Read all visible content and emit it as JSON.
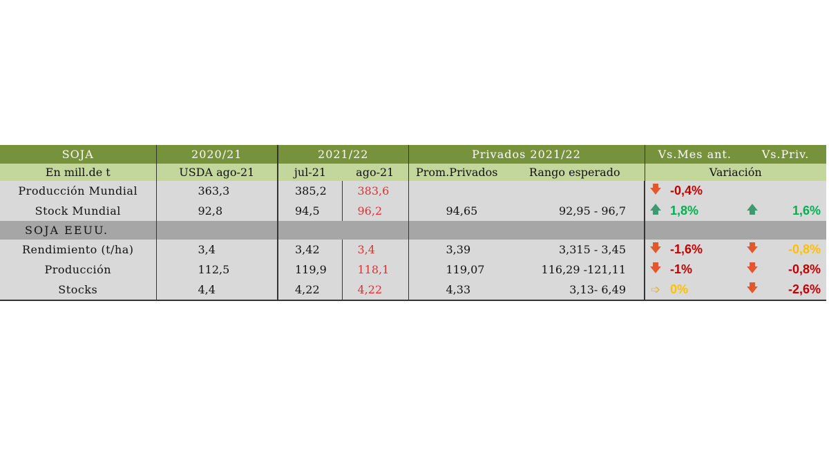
{
  "header1": {
    "soja": "SOJA",
    "year_2020": "2020/21",
    "year_2021": "2021/22",
    "privados": "Privados 2021/22",
    "vs_mes": "Vs.Mes ant.",
    "vs_priv": "Vs.Priv."
  },
  "header2": {
    "unit": "En mill.de t",
    "usda": "USDA ago-21",
    "jul": "jul-21",
    "ago": "ago-21",
    "prom": "Prom.Privados",
    "rango": "Rango esperado",
    "variacion": "Variación"
  },
  "section_label": "SOJA EEUU.",
  "rows_world": [
    {
      "label": "Producción Mundial",
      "usda": "363,3",
      "jul": "385,2",
      "ago": "383,6",
      "prom": "",
      "rango": "",
      "var1_icon": "arrow-down",
      "var1": "-0,4%",
      "var1_color": "#c00000",
      "var2_icon": "",
      "var2": "",
      "var2_color": ""
    },
    {
      "label": "Stock Mundial",
      "usda": "92,8",
      "jul": "94,5",
      "ago": "96,2",
      "prom": "94,65",
      "rango": "92,95 - 96,7",
      "var1_icon": "arrow-up",
      "var1": "1,8%",
      "var1_color": "#00b050",
      "var2_icon": "arrow-up",
      "var2": "1,6%",
      "var2_color": "#00b050"
    }
  ],
  "rows_us": [
    {
      "label": "Rendimiento (t/ha)",
      "usda": "3,4",
      "jul": "3,42",
      "ago": "3,4",
      "prom": "3,39",
      "rango": "3,315 - 3,45",
      "var1_icon": "arrow-down",
      "var1": "-1,6%",
      "var1_color": "#c00000",
      "var2_icon": "arrow-down",
      "var2": "-0,8%",
      "var2_color": "#ffc000"
    },
    {
      "label": "Producción",
      "usda": "112,5",
      "jul": "119,9",
      "ago": "118,1",
      "prom": "119,07",
      "rango": "116,29 -121,11",
      "var1_icon": "arrow-down",
      "var1": "-1%",
      "var1_color": "#c00000",
      "var2_icon": "arrow-down",
      "var2": "-0,8%",
      "var2_color": "#c00000"
    },
    {
      "label": "Stocks",
      "usda": "4,4",
      "jul": "4,22",
      "ago": "4,22",
      "prom": "4,33",
      "rango": "3,13- 6,49",
      "var1_icon": "arrow-right",
      "var1": "0%",
      "var1_color": "#ffc000",
      "var2_icon": "arrow-down",
      "var2": "-2,6%",
      "var2_color": "#c00000"
    }
  ],
  "colors": {
    "header_dark": "#76923c",
    "header_light": "#c3d69b",
    "row_bg": "#d9d9d9",
    "section_bg": "#a6a6a6",
    "ago_value": "#e03030"
  }
}
